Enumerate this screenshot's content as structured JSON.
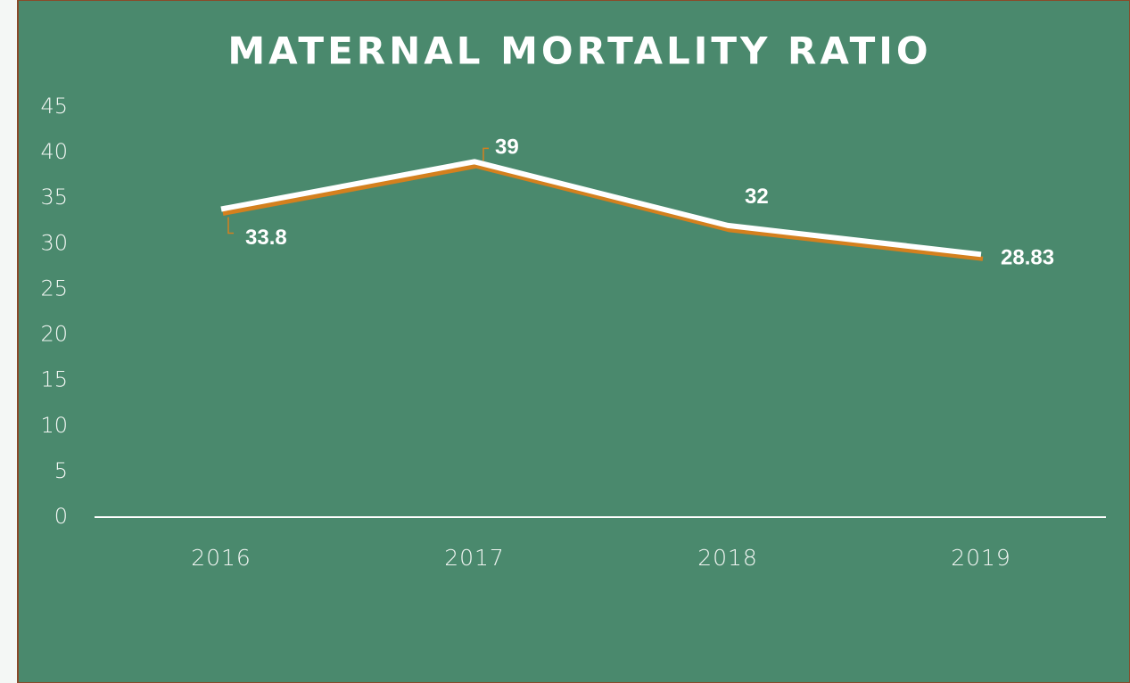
{
  "chart_data": {
    "type": "line",
    "title": "MATERNAL MORTALITY RATIO",
    "categories": [
      "2016",
      "2017",
      "2018",
      "2019"
    ],
    "series": [
      {
        "name": "Maternal Mortality Ratio",
        "color": "#ffffff",
        "values": [
          33.8,
          39,
          32,
          28.83
        ]
      }
    ],
    "ylim": [
      0,
      45
    ],
    "yticks": [
      0,
      5,
      10,
      15,
      20,
      25,
      30,
      35,
      40,
      45
    ],
    "grid": false,
    "legend": false
  }
}
